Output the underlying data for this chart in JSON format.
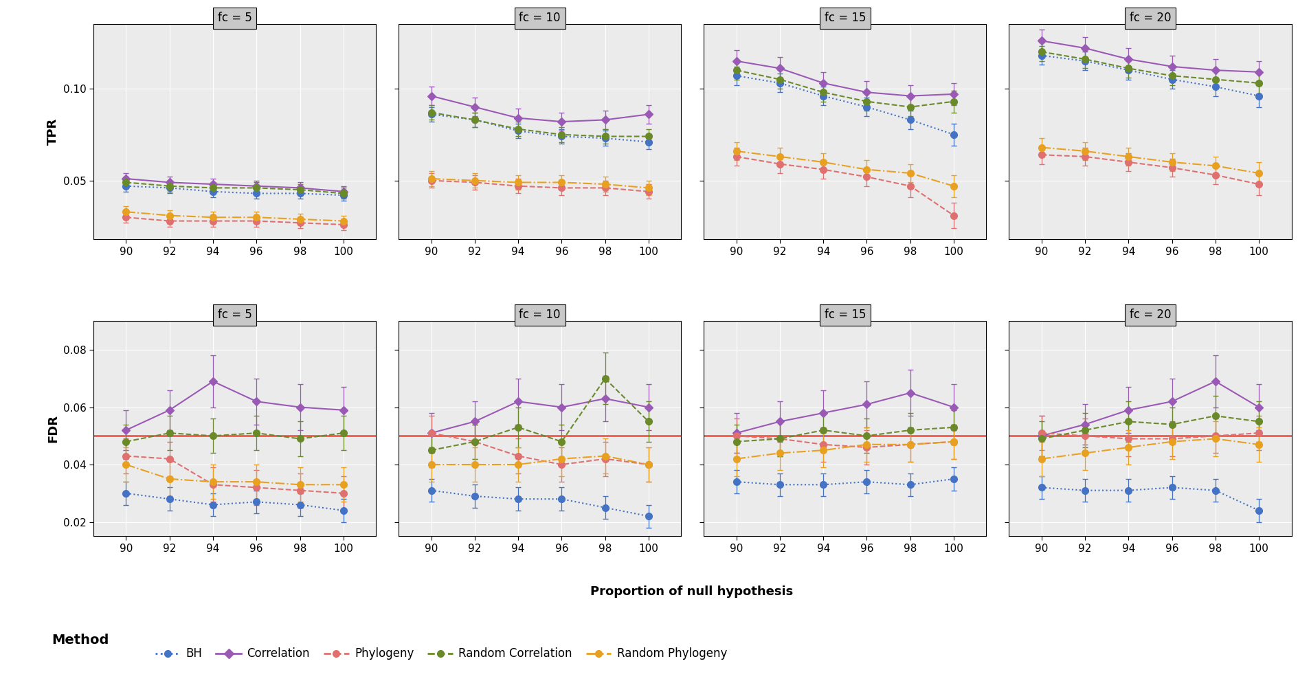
{
  "fc_values": [
    5,
    10,
    15,
    20
  ],
  "x_vals": [
    90,
    92,
    94,
    96,
    98,
    100
  ],
  "tpr": {
    "BH": {
      "fc5": {
        "mean": [
          0.047,
          0.046,
          0.044,
          0.043,
          0.043,
          0.042
        ],
        "sd": [
          0.003,
          0.003,
          0.003,
          0.003,
          0.003,
          0.003
        ]
      },
      "fc10": {
        "mean": [
          0.086,
          0.083,
          0.077,
          0.074,
          0.073,
          0.071
        ],
        "sd": [
          0.004,
          0.004,
          0.004,
          0.004,
          0.004,
          0.004
        ]
      },
      "fc15": {
        "mean": [
          0.107,
          0.103,
          0.096,
          0.09,
          0.083,
          0.075
        ],
        "sd": [
          0.005,
          0.005,
          0.005,
          0.005,
          0.005,
          0.006
        ]
      },
      "fc20": {
        "mean": [
          0.118,
          0.115,
          0.11,
          0.105,
          0.101,
          0.096
        ],
        "sd": [
          0.005,
          0.005,
          0.005,
          0.005,
          0.005,
          0.006
        ]
      }
    },
    "Correlation": {
      "fc5": {
        "mean": [
          0.051,
          0.049,
          0.048,
          0.047,
          0.046,
          0.044
        ],
        "sd": [
          0.003,
          0.003,
          0.003,
          0.003,
          0.003,
          0.003
        ]
      },
      "fc10": {
        "mean": [
          0.096,
          0.09,
          0.084,
          0.082,
          0.083,
          0.086
        ],
        "sd": [
          0.005,
          0.005,
          0.005,
          0.005,
          0.005,
          0.005
        ]
      },
      "fc15": {
        "mean": [
          0.115,
          0.111,
          0.103,
          0.098,
          0.096,
          0.097
        ],
        "sd": [
          0.006,
          0.006,
          0.006,
          0.006,
          0.006,
          0.006
        ]
      },
      "fc20": {
        "mean": [
          0.126,
          0.122,
          0.116,
          0.112,
          0.11,
          0.109
        ],
        "sd": [
          0.006,
          0.006,
          0.006,
          0.006,
          0.006,
          0.006
        ]
      }
    },
    "Phylogeny": {
      "fc5": {
        "mean": [
          0.03,
          0.028,
          0.028,
          0.028,
          0.027,
          0.026
        ],
        "sd": [
          0.003,
          0.003,
          0.003,
          0.003,
          0.003,
          0.003
        ]
      },
      "fc10": {
        "mean": [
          0.05,
          0.049,
          0.047,
          0.046,
          0.046,
          0.044
        ],
        "sd": [
          0.004,
          0.004,
          0.004,
          0.004,
          0.004,
          0.004
        ]
      },
      "fc15": {
        "mean": [
          0.063,
          0.059,
          0.056,
          0.052,
          0.047,
          0.031
        ],
        "sd": [
          0.005,
          0.005,
          0.005,
          0.005,
          0.006,
          0.007
        ]
      },
      "fc20": {
        "mean": [
          0.064,
          0.063,
          0.06,
          0.057,
          0.053,
          0.048
        ],
        "sd": [
          0.005,
          0.005,
          0.005,
          0.005,
          0.005,
          0.006
        ]
      }
    },
    "Random Correlation": {
      "fc5": {
        "mean": [
          0.049,
          0.047,
          0.046,
          0.046,
          0.045,
          0.043
        ],
        "sd": [
          0.003,
          0.003,
          0.003,
          0.003,
          0.003,
          0.003
        ]
      },
      "fc10": {
        "mean": [
          0.087,
          0.083,
          0.078,
          0.075,
          0.074,
          0.074
        ],
        "sd": [
          0.004,
          0.004,
          0.004,
          0.004,
          0.004,
          0.004
        ]
      },
      "fc15": {
        "mean": [
          0.11,
          0.105,
          0.098,
          0.093,
          0.09,
          0.093
        ],
        "sd": [
          0.005,
          0.005,
          0.005,
          0.005,
          0.005,
          0.006
        ]
      },
      "fc20": {
        "mean": [
          0.12,
          0.116,
          0.111,
          0.107,
          0.105,
          0.103
        ],
        "sd": [
          0.005,
          0.005,
          0.005,
          0.005,
          0.005,
          0.006
        ]
      }
    },
    "Random Phylogeny": {
      "fc5": {
        "mean": [
          0.033,
          0.031,
          0.03,
          0.03,
          0.029,
          0.028
        ],
        "sd": [
          0.003,
          0.003,
          0.003,
          0.003,
          0.003,
          0.003
        ]
      },
      "fc10": {
        "mean": [
          0.051,
          0.05,
          0.049,
          0.049,
          0.048,
          0.046
        ],
        "sd": [
          0.004,
          0.004,
          0.004,
          0.004,
          0.004,
          0.004
        ]
      },
      "fc15": {
        "mean": [
          0.066,
          0.063,
          0.06,
          0.056,
          0.054,
          0.047
        ],
        "sd": [
          0.005,
          0.005,
          0.005,
          0.005,
          0.005,
          0.006
        ]
      },
      "fc20": {
        "mean": [
          0.068,
          0.066,
          0.063,
          0.06,
          0.058,
          0.054
        ],
        "sd": [
          0.005,
          0.005,
          0.005,
          0.005,
          0.005,
          0.006
        ]
      }
    }
  },
  "fdr": {
    "BH": {
      "fc5": {
        "mean": [
          0.03,
          0.028,
          0.026,
          0.027,
          0.026,
          0.024
        ],
        "sd": [
          0.004,
          0.004,
          0.004,
          0.004,
          0.004,
          0.004
        ]
      },
      "fc10": {
        "mean": [
          0.031,
          0.029,
          0.028,
          0.028,
          0.025,
          0.022
        ],
        "sd": [
          0.004,
          0.004,
          0.004,
          0.004,
          0.004,
          0.004
        ]
      },
      "fc15": {
        "mean": [
          0.034,
          0.033,
          0.033,
          0.034,
          0.033,
          0.035
        ],
        "sd": [
          0.004,
          0.004,
          0.004,
          0.004,
          0.004,
          0.004
        ]
      },
      "fc20": {
        "mean": [
          0.032,
          0.031,
          0.031,
          0.032,
          0.031,
          0.024
        ],
        "sd": [
          0.004,
          0.004,
          0.004,
          0.004,
          0.004,
          0.004
        ]
      }
    },
    "Correlation": {
      "fc5": {
        "mean": [
          0.052,
          0.059,
          0.069,
          0.062,
          0.06,
          0.059
        ],
        "sd": [
          0.007,
          0.007,
          0.009,
          0.008,
          0.008,
          0.008
        ]
      },
      "fc10": {
        "mean": [
          0.051,
          0.055,
          0.062,
          0.06,
          0.063,
          0.06
        ],
        "sd": [
          0.007,
          0.007,
          0.008,
          0.008,
          0.008,
          0.008
        ]
      },
      "fc15": {
        "mean": [
          0.051,
          0.055,
          0.058,
          0.061,
          0.065,
          0.06
        ],
        "sd": [
          0.007,
          0.007,
          0.008,
          0.008,
          0.008,
          0.008
        ]
      },
      "fc20": {
        "mean": [
          0.05,
          0.054,
          0.059,
          0.062,
          0.069,
          0.06
        ],
        "sd": [
          0.007,
          0.007,
          0.008,
          0.008,
          0.009,
          0.008
        ]
      }
    },
    "Phylogeny": {
      "fc5": {
        "mean": [
          0.043,
          0.042,
          0.033,
          0.032,
          0.031,
          0.03
        ],
        "sd": [
          0.006,
          0.006,
          0.006,
          0.006,
          0.006,
          0.006
        ]
      },
      "fc10": {
        "mean": [
          0.051,
          0.048,
          0.043,
          0.04,
          0.042,
          0.04
        ],
        "sd": [
          0.006,
          0.006,
          0.006,
          0.006,
          0.006,
          0.006
        ]
      },
      "fc15": {
        "mean": [
          0.05,
          0.049,
          0.047,
          0.046,
          0.047,
          0.048
        ],
        "sd": [
          0.006,
          0.006,
          0.006,
          0.006,
          0.006,
          0.006
        ]
      },
      "fc20": {
        "mean": [
          0.051,
          0.05,
          0.049,
          0.049,
          0.05,
          0.051
        ],
        "sd": [
          0.006,
          0.006,
          0.006,
          0.006,
          0.006,
          0.006
        ]
      }
    },
    "Random Correlation": {
      "fc5": {
        "mean": [
          0.048,
          0.051,
          0.05,
          0.051,
          0.049,
          0.051
        ],
        "sd": [
          0.006,
          0.006,
          0.006,
          0.006,
          0.006,
          0.006
        ]
      },
      "fc10": {
        "mean": [
          0.045,
          0.048,
          0.053,
          0.048,
          0.07,
          0.055
        ],
        "sd": [
          0.006,
          0.006,
          0.007,
          0.006,
          0.009,
          0.007
        ]
      },
      "fc15": {
        "mean": [
          0.048,
          0.049,
          0.052,
          0.05,
          0.052,
          0.053
        ],
        "sd": [
          0.006,
          0.006,
          0.006,
          0.006,
          0.006,
          0.006
        ]
      },
      "fc20": {
        "mean": [
          0.049,
          0.052,
          0.055,
          0.054,
          0.057,
          0.055
        ],
        "sd": [
          0.006,
          0.006,
          0.007,
          0.006,
          0.007,
          0.007
        ]
      }
    },
    "Random Phylogeny": {
      "fc5": {
        "mean": [
          0.04,
          0.035,
          0.034,
          0.034,
          0.033,
          0.033
        ],
        "sd": [
          0.006,
          0.006,
          0.006,
          0.006,
          0.006,
          0.006
        ]
      },
      "fc10": {
        "mean": [
          0.04,
          0.04,
          0.04,
          0.042,
          0.043,
          0.04
        ],
        "sd": [
          0.006,
          0.006,
          0.006,
          0.006,
          0.006,
          0.006
        ]
      },
      "fc15": {
        "mean": [
          0.042,
          0.044,
          0.045,
          0.047,
          0.047,
          0.048
        ],
        "sd": [
          0.006,
          0.006,
          0.006,
          0.006,
          0.006,
          0.006
        ]
      },
      "fc20": {
        "mean": [
          0.042,
          0.044,
          0.046,
          0.048,
          0.049,
          0.047
        ],
        "sd": [
          0.006,
          0.006,
          0.006,
          0.006,
          0.006,
          0.006
        ]
      }
    }
  },
  "methods": [
    "BH",
    "Correlation",
    "Phylogeny",
    "Random Correlation",
    "Random Phylogeny"
  ],
  "colors": {
    "BH": "#4472C4",
    "Correlation": "#9B59B6",
    "Phylogeny": "#E07070",
    "Random Correlation": "#6A8A2A",
    "Random Phylogeny": "#E8A020"
  },
  "linestyles": {
    "BH": "dotted",
    "Correlation": "solid",
    "Phylogeny": "dashed",
    "Random Correlation": "dashed",
    "Random Phylogeny": "dashdot"
  },
  "markers": {
    "BH": "o",
    "Correlation": "D",
    "Phylogeny": "o",
    "Random Correlation": "o",
    "Random Phylogeny": "o"
  },
  "tpr_ylim": [
    0.018,
    0.135
  ],
  "fdr_ylim": [
    0.015,
    0.09
  ],
  "tpr_yticks": [
    0.05,
    0.1
  ],
  "fdr_yticks": [
    0.02,
    0.04,
    0.06,
    0.08
  ],
  "fdr_reference_line": 0.05,
  "fdr_ref_color": "#E74C3C",
  "panel_face_color": "#EBEBEB",
  "strip_color": "#C8C8C8",
  "grid_color": "white",
  "xlabel": "Proportion of null hypothesis",
  "tpr_ylabel": "TPR",
  "fdr_ylabel": "FDR",
  "legend_title": "Method"
}
